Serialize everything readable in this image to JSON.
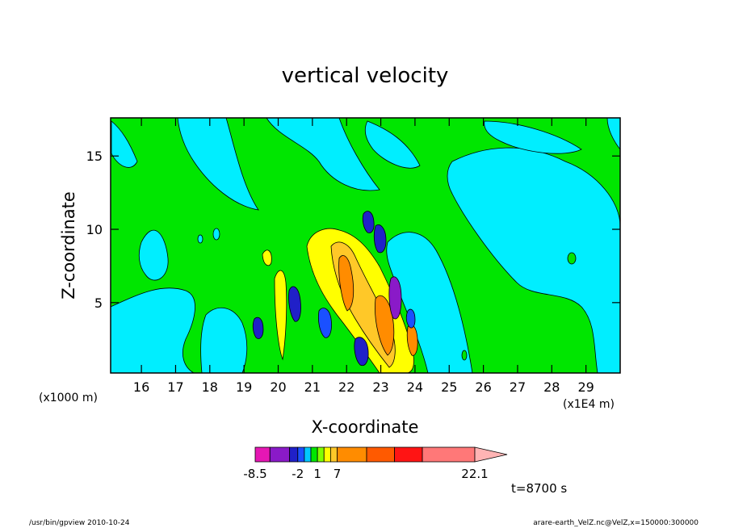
{
  "chart_data": {
    "type": "heatmap",
    "title": "vertical velocity",
    "xlabel": "X-coordinate",
    "ylabel": "Z-coordinate",
    "x_unit_left": "(x1000 m)",
    "x_unit_right": "(x1E4 m)",
    "xlim": [
      15.1,
      30.0
    ],
    "ylim": [
      0.2,
      17.6
    ],
    "x_ticks": [
      16,
      17,
      18,
      19,
      20,
      21,
      22,
      23,
      24,
      25,
      26,
      27,
      28,
      29
    ],
    "x_tick_labels": [
      "16",
      "17",
      "18",
      "19",
      "20",
      "21",
      "22",
      "23",
      "24",
      "25",
      "26",
      "27",
      "28",
      "29"
    ],
    "y_ticks": [
      5,
      10,
      15
    ],
    "y_tick_labels": [
      "5",
      "10",
      "15"
    ],
    "colorbar": {
      "levels": [
        -8.5,
        -6,
        -4,
        -2,
        -1,
        0,
        1,
        2,
        3,
        7,
        10,
        13,
        22.1
      ],
      "tick_labels": [
        "-8.5",
        "-2",
        "1",
        "7",
        "22.1"
      ],
      "colors": [
        "#e617b4",
        "#8a1ac8",
        "#2020c8",
        "#1a50ff",
        "#00c8ff",
        "#00e600",
        "#80ff00",
        "#ffff00",
        "#ffc828",
        "#ff8c00",
        "#ff5a00",
        "#ff1414",
        "#ff7878"
      ],
      "extend": "max"
    },
    "background_color": "#00e600",
    "negative_color": "#00eeff",
    "time_label": "t=8700 s"
  },
  "footer": {
    "left": "/usr/bin/gpview   2010-10-24",
    "right": "arare-earth_VelZ.nc@VelZ,x=150000:300000"
  }
}
